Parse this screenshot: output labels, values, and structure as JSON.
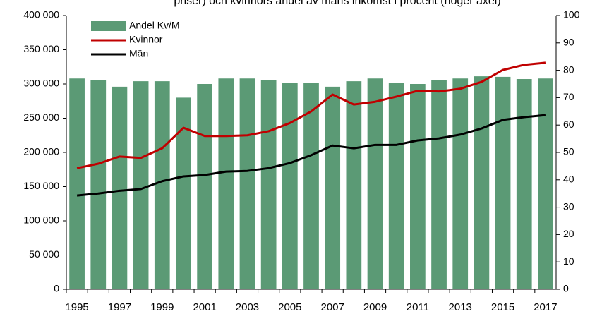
{
  "chart_data": {
    "type": "bar_line",
    "title": "priser) och kvinnors andel av mäns inkomst i procent (höger axel)",
    "categories": [
      "1995",
      null,
      "1997",
      null,
      "1999",
      null,
      "2001",
      null,
      "2003",
      null,
      "2005",
      null,
      "2007",
      null,
      "2009",
      null,
      "2011",
      null,
      "2013",
      null,
      "2015",
      null,
      "2017"
    ],
    "series": [
      {
        "name": "Andel Kv/M",
        "color": "#5b9a75",
        "axis": "y2",
        "kind": "bar",
        "values": [
          77,
          76.3,
          74,
          76,
          76,
          70,
          75,
          77,
          77,
          76.5,
          75.5,
          75.3,
          74,
          76,
          77,
          75.3,
          75,
          76.3,
          77,
          77.8,
          77.6,
          76.8,
          77
        ]
      },
      {
        "name": "Kvinnor",
        "color": "#c00000",
        "kind": "line",
        "values": [
          177000,
          183500,
          194000,
          192000,
          206000,
          236000,
          224000,
          224000,
          225000,
          231000,
          243000,
          260000,
          284500,
          270000,
          274000,
          281500,
          290000,
          289000,
          293000,
          303000,
          320500,
          328000,
          331000
        ]
      },
      {
        "name": "Män",
        "color": "#000000",
        "kind": "line",
        "values": [
          137000,
          140000,
          144000,
          146500,
          158000,
          165000,
          167000,
          172000,
          173000,
          177000,
          184500,
          196000,
          210000,
          206000,
          211000,
          211000,
          217500,
          220500,
          226000,
          235000,
          247500,
          251500,
          254500
        ]
      }
    ],
    "ylim": [
      0,
      400000
    ],
    "yticks": [
      0,
      {
        "value": 50000,
        "label": "50 000"
      },
      {
        "value": 100000,
        "label": "100 000"
      },
      {
        "value": 150000,
        "label": "150 000"
      },
      {
        "value": 200000,
        "label": "200 000"
      },
      {
        "value": 250000,
        "label": "250 000"
      },
      {
        "value": 300000,
        "label": "300 000"
      },
      {
        "value": 350000,
        "label": "350 000"
      },
      {
        "value": 400000,
        "label": "400 000"
      }
    ],
    "y2lim": [
      0,
      100
    ],
    "y2ticks": [
      0,
      10,
      20,
      30,
      40,
      50,
      60,
      70,
      80,
      90,
      100
    ],
    "legend": "upper left"
  }
}
